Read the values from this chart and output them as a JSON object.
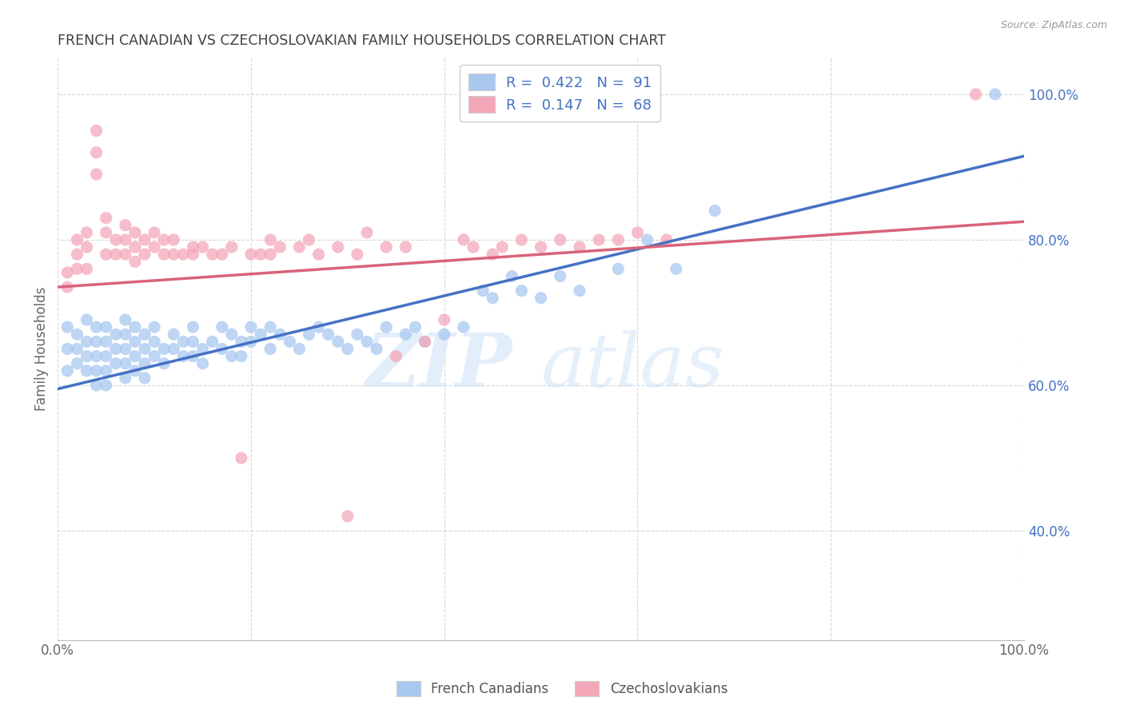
{
  "title": "FRENCH CANADIAN VS CZECHOSLOVAKIAN FAMILY HOUSEHOLDS CORRELATION CHART",
  "source": "Source: ZipAtlas.com",
  "ylabel": "Family Households",
  "xlim": [
    0.0,
    1.0
  ],
  "ylim": [
    0.25,
    1.05
  ],
  "x_tick_labels": [
    "0.0%",
    "100.0%"
  ],
  "y_tick_labels_right": [
    "100.0%",
    "80.0%",
    "60.0%",
    "40.0%"
  ],
  "y_tick_positions_right": [
    1.0,
    0.8,
    0.6,
    0.4
  ],
  "blue_color": "#a8c8f0",
  "pink_color": "#f4a7b9",
  "blue_line_color": "#4472c4",
  "pink_line_color": "#d9637a",
  "legend_r_blue": "0.422",
  "legend_n_blue": "91",
  "legend_r_pink": "0.147",
  "legend_n_pink": "68",
  "watermark_zip": "ZIP",
  "watermark_atlas": "atlas",
  "grid_color": "#d8d8d8",
  "bg_color": "#ffffff",
  "title_color": "#404040",
  "axis_label_color": "#666666",
  "right_tick_color": "#4472c4",
  "blue_trend_x": [
    0.0,
    1.0
  ],
  "blue_trend_y": [
    0.595,
    0.915
  ],
  "pink_trend_x": [
    0.0,
    1.0
  ],
  "pink_trend_y": [
    0.735,
    0.825
  ],
  "blue_scatter_x": [
    0.01,
    0.01,
    0.01,
    0.02,
    0.02,
    0.02,
    0.03,
    0.03,
    0.03,
    0.03,
    0.04,
    0.04,
    0.04,
    0.04,
    0.04,
    0.05,
    0.05,
    0.05,
    0.05,
    0.05,
    0.06,
    0.06,
    0.06,
    0.07,
    0.07,
    0.07,
    0.07,
    0.07,
    0.08,
    0.08,
    0.08,
    0.08,
    0.09,
    0.09,
    0.09,
    0.09,
    0.1,
    0.1,
    0.1,
    0.11,
    0.11,
    0.12,
    0.12,
    0.13,
    0.13,
    0.14,
    0.14,
    0.14,
    0.15,
    0.15,
    0.16,
    0.17,
    0.17,
    0.18,
    0.18,
    0.19,
    0.19,
    0.2,
    0.2,
    0.21,
    0.22,
    0.22,
    0.23,
    0.24,
    0.25,
    0.26,
    0.27,
    0.28,
    0.29,
    0.3,
    0.31,
    0.32,
    0.33,
    0.34,
    0.36,
    0.37,
    0.38,
    0.4,
    0.42,
    0.44,
    0.45,
    0.47,
    0.48,
    0.5,
    0.52,
    0.54,
    0.58,
    0.61,
    0.64,
    0.68,
    0.97
  ],
  "blue_scatter_y": [
    0.68,
    0.65,
    0.62,
    0.67,
    0.65,
    0.63,
    0.69,
    0.66,
    0.64,
    0.62,
    0.68,
    0.66,
    0.64,
    0.62,
    0.6,
    0.68,
    0.66,
    0.64,
    0.62,
    0.6,
    0.67,
    0.65,
    0.63,
    0.69,
    0.67,
    0.65,
    0.63,
    0.61,
    0.68,
    0.66,
    0.64,
    0.62,
    0.67,
    0.65,
    0.63,
    0.61,
    0.68,
    0.66,
    0.64,
    0.65,
    0.63,
    0.67,
    0.65,
    0.66,
    0.64,
    0.68,
    0.66,
    0.64,
    0.65,
    0.63,
    0.66,
    0.68,
    0.65,
    0.67,
    0.64,
    0.66,
    0.64,
    0.68,
    0.66,
    0.67,
    0.68,
    0.65,
    0.67,
    0.66,
    0.65,
    0.67,
    0.68,
    0.67,
    0.66,
    0.65,
    0.67,
    0.66,
    0.65,
    0.68,
    0.67,
    0.68,
    0.66,
    0.67,
    0.68,
    0.73,
    0.72,
    0.75,
    0.73,
    0.72,
    0.75,
    0.73,
    0.76,
    0.8,
    0.76,
    0.84,
    1.0
  ],
  "pink_scatter_x": [
    0.01,
    0.01,
    0.02,
    0.02,
    0.02,
    0.03,
    0.03,
    0.03,
    0.04,
    0.04,
    0.04,
    0.05,
    0.05,
    0.05,
    0.06,
    0.06,
    0.07,
    0.07,
    0.07,
    0.08,
    0.08,
    0.08,
    0.09,
    0.09,
    0.1,
    0.1,
    0.11,
    0.11,
    0.12,
    0.12,
    0.13,
    0.14,
    0.14,
    0.15,
    0.16,
    0.17,
    0.18,
    0.19,
    0.2,
    0.21,
    0.22,
    0.22,
    0.23,
    0.25,
    0.26,
    0.27,
    0.29,
    0.31,
    0.32,
    0.34,
    0.35,
    0.36,
    0.38,
    0.4,
    0.42,
    0.43,
    0.45,
    0.46,
    0.48,
    0.5,
    0.52,
    0.54,
    0.56,
    0.58,
    0.6,
    0.63,
    0.95,
    0.3
  ],
  "pink_scatter_y": [
    0.755,
    0.735,
    0.8,
    0.78,
    0.76,
    0.81,
    0.79,
    0.76,
    0.95,
    0.92,
    0.89,
    0.83,
    0.81,
    0.78,
    0.8,
    0.78,
    0.82,
    0.8,
    0.78,
    0.81,
    0.79,
    0.77,
    0.8,
    0.78,
    0.81,
    0.79,
    0.8,
    0.78,
    0.8,
    0.78,
    0.78,
    0.79,
    0.78,
    0.79,
    0.78,
    0.78,
    0.79,
    0.5,
    0.78,
    0.78,
    0.8,
    0.78,
    0.79,
    0.79,
    0.8,
    0.78,
    0.79,
    0.78,
    0.81,
    0.79,
    0.64,
    0.79,
    0.66,
    0.69,
    0.8,
    0.79,
    0.78,
    0.79,
    0.8,
    0.79,
    0.8,
    0.79,
    0.8,
    0.8,
    0.81,
    0.8,
    1.0,
    0.42
  ]
}
